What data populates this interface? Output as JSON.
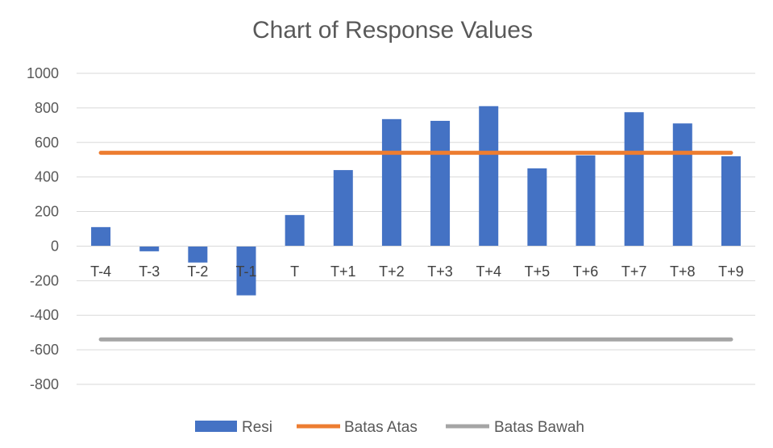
{
  "chart_data": {
    "type": "bar",
    "title": "Chart of Response Values",
    "categories": [
      "T-4",
      "T-3",
      "T-2",
      "T-1",
      "T",
      "T+1",
      "T+2",
      "T+3",
      "T+4",
      "T+5",
      "T+6",
      "T+7",
      "T+8",
      "T+9"
    ],
    "series": [
      {
        "name": "Resi",
        "type": "bar",
        "color": "#4472C4",
        "values": [
          110,
          -30,
          -95,
          -285,
          180,
          440,
          735,
          725,
          810,
          450,
          525,
          775,
          710,
          520
        ]
      },
      {
        "name": "Batas Atas",
        "type": "line",
        "color": "#ED7D31",
        "values": [
          540,
          540,
          540,
          540,
          540,
          540,
          540,
          540,
          540,
          540,
          540,
          540,
          540,
          540
        ]
      },
      {
        "name": "Batas Bawah",
        "type": "line",
        "color": "#A5A5A5",
        "values": [
          -540,
          -540,
          -540,
          -540,
          -540,
          -540,
          -540,
          -540,
          -540,
          -540,
          -540,
          -540,
          -540,
          -540
        ]
      }
    ],
    "yticks": [
      "1000",
      "800",
      "600",
      "400",
      "200",
      "0",
      "-200",
      "-400",
      "-600",
      "-800"
    ],
    "ylim": [
      -800,
      1000
    ],
    "grid": true,
    "legend_position": "bottom"
  }
}
